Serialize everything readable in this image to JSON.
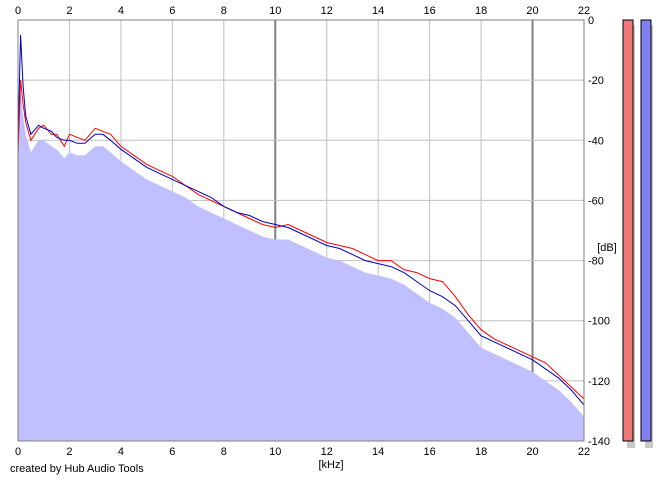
{
  "footer": {
    "credit": "created by Hub Audio Tools"
  },
  "chart_data": {
    "type": "line",
    "xlabel": "[kHz]",
    "ylabel": "[dB]",
    "xlim": [
      0,
      22
    ],
    "ylim": [
      -140,
      0
    ],
    "x_ticks": [
      0,
      2,
      4,
      6,
      8,
      10,
      12,
      14,
      16,
      18,
      20,
      22
    ],
    "y_ticks": [
      0,
      -20,
      -40,
      -60,
      -80,
      -100,
      -120,
      -140
    ],
    "grid": true,
    "colors": {
      "fill": "#c0c0ff",
      "left_channel": "#ff0000",
      "right_channel": "#0000c0",
      "meter_left": "#f07878",
      "meter_right": "#8080f0",
      "grid": "#c0c0c0",
      "grid_major": "#808080"
    },
    "channel_meters": 2,
    "series": [
      {
        "color": "#ff0000",
        "x": [
          0.0,
          0.1,
          0.2,
          0.3,
          0.5,
          0.8,
          1.0,
          1.3,
          1.5,
          1.8,
          2.0,
          2.3,
          2.6,
          3.0,
          3.3,
          3.6,
          4.0,
          4.5,
          5.0,
          5.5,
          6.0,
          6.5,
          7.0,
          7.5,
          8.0,
          8.5,
          9.0,
          9.5,
          10.0,
          10.5,
          11.0,
          11.5,
          12.0,
          12.5,
          13.0,
          13.5,
          14.0,
          14.5,
          15.0,
          15.5,
          16.0,
          16.5,
          17.0,
          17.5,
          18.0,
          18.5,
          19.0,
          19.5,
          20.0,
          20.5,
          21.0,
          21.5,
          22.0
        ],
        "values": [
          -45,
          -20,
          -28,
          -34,
          -40,
          -36,
          -35,
          -38,
          -38,
          -42,
          -38,
          -39,
          -40,
          -36,
          -37,
          -38,
          -42,
          -45,
          -48,
          -50,
          -52,
          -55,
          -58,
          -60,
          -62,
          -64,
          -66,
          -68,
          -69,
          -68,
          -70,
          -72,
          -74,
          -75,
          -76,
          -78,
          -80,
          -80,
          -83,
          -84,
          -86,
          -87,
          -92,
          -98,
          -103,
          -106,
          -108,
          -110,
          -112,
          -114,
          -118,
          -122,
          -126
        ]
      },
      {
        "color": "#0000c0",
        "x": [
          0.0,
          0.1,
          0.2,
          0.3,
          0.5,
          0.8,
          1.0,
          1.3,
          1.5,
          1.8,
          2.0,
          2.3,
          2.6,
          3.0,
          3.3,
          3.6,
          4.0,
          4.5,
          5.0,
          5.5,
          6.0,
          6.5,
          7.0,
          7.5,
          8.0,
          8.5,
          9.0,
          9.5,
          10.0,
          10.5,
          11.0,
          11.5,
          12.0,
          12.5,
          13.0,
          13.5,
          14.0,
          14.5,
          15.0,
          15.5,
          16.0,
          16.5,
          17.0,
          17.5,
          18.0,
          18.5,
          19.0,
          19.5,
          20.0,
          20.5,
          21.0,
          21.5,
          22.0
        ],
        "values": [
          -40,
          -5,
          -22,
          -32,
          -38,
          -35,
          -36,
          -37,
          -39,
          -40,
          -40,
          -41,
          -41,
          -38,
          -38,
          -40,
          -43,
          -46,
          -49,
          -51,
          -53,
          -55,
          -57,
          -59,
          -62,
          -64,
          -65,
          -67,
          -68,
          -69,
          -71,
          -73,
          -75,
          -76,
          -78,
          -80,
          -81,
          -82,
          -84,
          -87,
          -90,
          -92,
          -95,
          -100,
          -105,
          -107,
          -109,
          -111,
          -113,
          -116,
          -119,
          -123,
          -128
        ]
      }
    ]
  }
}
